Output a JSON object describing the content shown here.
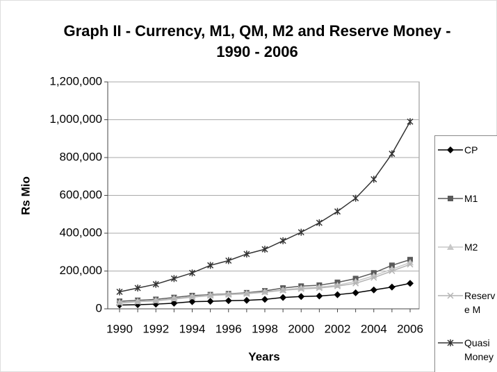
{
  "chart_data": {
    "type": "line",
    "title": "Graph II - Currency, M1, QM, M2 and Reserve Money - 1990 - 2006",
    "xlabel": "Years",
    "ylabel": "Rs Mio",
    "categories": [
      "1990",
      null,
      "1992",
      null,
      "1994",
      null,
      "1996",
      null,
      "1998",
      null,
      "2000",
      null,
      "2002",
      null,
      "2004",
      null,
      "2006"
    ],
    "ylim": [
      0,
      1200000
    ],
    "yticks": [
      0,
      {
        "value": 200000,
        "label": "200,000"
      },
      {
        "value": 400000,
        "label": "400,000"
      },
      {
        "value": 600000,
        "label": "600,000"
      },
      {
        "value": 800000,
        "label": "800,000"
      },
      {
        "value": 1000000,
        "label": "1,000,000"
      },
      {
        "value": 1200000,
        "label": "1,200,000"
      }
    ],
    "grid": true,
    "legend": "right",
    "series": [
      {
        "name": "CP",
        "color": "#000000",
        "marker": "diamond",
        "values": [
          20000,
          22000,
          25000,
          30000,
          38000,
          40000,
          43000,
          45000,
          50000,
          60000,
          65000,
          68000,
          75000,
          85000,
          100000,
          115000,
          135000
        ]
      },
      {
        "name": "M1",
        "color": "#5a5a5a",
        "marker": "square",
        "values": [
          40000,
          45000,
          50000,
          60000,
          70000,
          75000,
          80000,
          85000,
          95000,
          110000,
          120000,
          125000,
          140000,
          160000,
          190000,
          230000,
          260000
        ]
      },
      {
        "name": "M2",
        "color": "#c8c8c8",
        "marker": "triangle",
        "values": [
          35000,
          40000,
          45000,
          55000,
          65000,
          72000,
          78000,
          82000,
          90000,
          100000,
          110000,
          115000,
          125000,
          145000,
          175000,
          210000,
          245000
        ]
      },
      {
        "name": "Reserve M",
        "color": "#b4b4b4",
        "marker": "x",
        "values": [
          30000,
          38000,
          42000,
          52000,
          62000,
          70000,
          75000,
          80000,
          88000,
          98000,
          105000,
          110000,
          120000,
          135000,
          165000,
          200000,
          235000
        ]
      },
      {
        "name": "Quasi Money",
        "color": "#333333",
        "marker": "star",
        "values": [
          90000,
          110000,
          130000,
          160000,
          190000,
          230000,
          255000,
          290000,
          315000,
          360000,
          405000,
          455000,
          515000,
          585000,
          685000,
          820000,
          990000
        ]
      }
    ]
  }
}
